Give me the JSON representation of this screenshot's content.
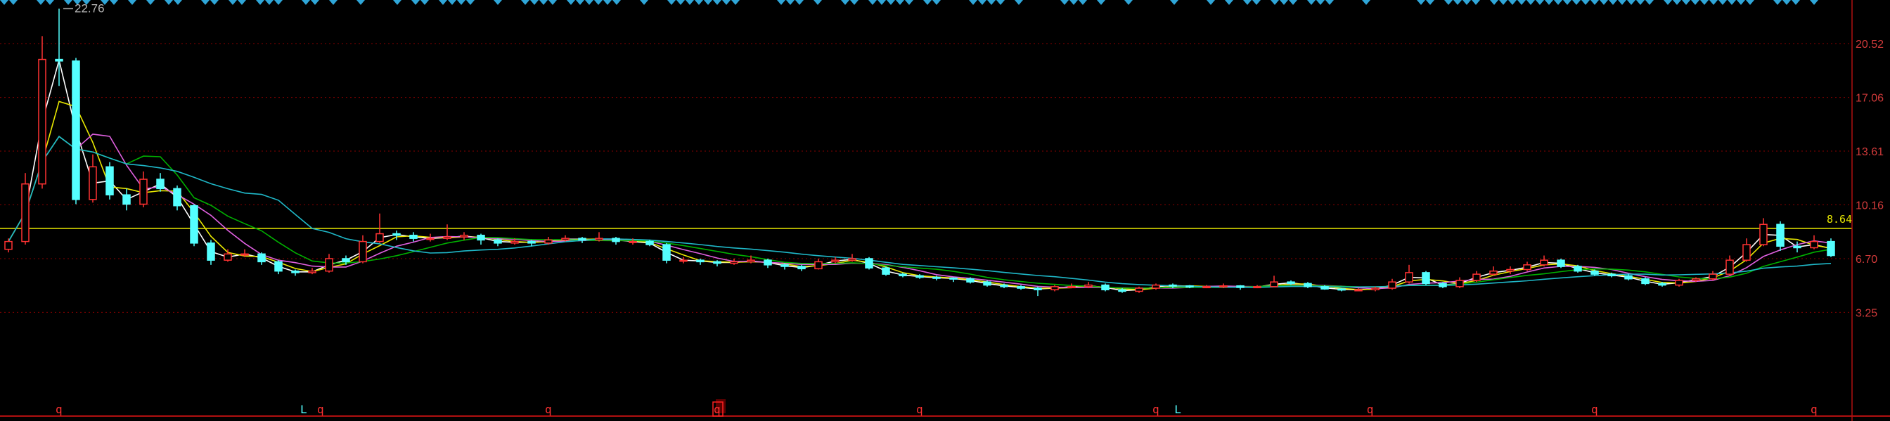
{
  "chart_data": {
    "type": "candlestick",
    "ylim": [
      1.2,
      23.3
    ],
    "y_ticks": [
      "20.52",
      "17.06",
      "13.61",
      "10.16",
      "6.70",
      "3.25"
    ],
    "grid": true,
    "reference_line": {
      "value": 8.64,
      "label": "8.64",
      "color": "#e8e800"
    },
    "max_annotation": {
      "value": 22.76,
      "label": "22.76",
      "index": 3
    },
    "colors": {
      "up": "#ff3232",
      "down": "#54ffff",
      "axis": "#b01010",
      "grid": "#8a0000",
      "signal": "#2fa6d8"
    },
    "moving_average_colors": [
      "#ffffff",
      "#e8e800",
      "#e060e0",
      "#00b000",
      "#1fb8c8"
    ],
    "candles": [
      [
        7.3,
        8.0,
        7.1,
        7.8
      ],
      [
        7.8,
        12.2,
        7.6,
        11.5
      ],
      [
        11.5,
        21.0,
        11.2,
        19.5
      ],
      [
        19.5,
        22.76,
        17.8,
        19.4
      ],
      [
        19.4,
        19.6,
        10.2,
        10.5
      ],
      [
        10.5,
        13.4,
        10.3,
        12.6
      ],
      [
        12.6,
        12.9,
        10.5,
        10.8
      ],
      [
        10.8,
        11.2,
        9.8,
        10.2
      ],
      [
        10.2,
        12.3,
        10.0,
        11.8
      ],
      [
        11.8,
        12.2,
        11.0,
        11.2
      ],
      [
        11.2,
        11.4,
        9.8,
        10.1
      ],
      [
        10.1,
        10.2,
        7.5,
        7.7
      ],
      [
        7.7,
        7.9,
        6.3,
        6.6
      ],
      [
        6.6,
        7.3,
        6.5,
        7.0
      ],
      [
        7.0,
        7.3,
        6.8,
        7.0
      ],
      [
        7.0,
        7.1,
        6.3,
        6.5
      ],
      [
        6.5,
        6.6,
        5.7,
        5.9
      ],
      [
        5.9,
        6.0,
        5.6,
        5.8
      ],
      [
        5.8,
        6.1,
        5.7,
        5.9
      ],
      [
        5.9,
        7.0,
        5.8,
        6.7
      ],
      [
        6.7,
        6.9,
        6.3,
        6.5
      ],
      [
        6.5,
        8.2,
        6.4,
        7.8
      ],
      [
        7.8,
        9.6,
        7.7,
        8.3
      ],
      [
        8.3,
        8.5,
        7.9,
        8.2
      ],
      [
        8.2,
        8.4,
        7.8,
        8.0
      ],
      [
        8.0,
        8.3,
        7.8,
        8.0
      ],
      [
        8.0,
        8.9,
        7.9,
        8.1
      ],
      [
        8.1,
        8.4,
        7.9,
        8.2
      ],
      [
        8.2,
        8.3,
        7.6,
        7.9
      ],
      [
        7.9,
        8.0,
        7.5,
        7.7
      ],
      [
        7.7,
        8.0,
        7.6,
        7.8
      ],
      [
        7.8,
        7.9,
        7.5,
        7.7
      ],
      [
        7.7,
        8.1,
        7.6,
        7.9
      ],
      [
        7.9,
        8.2,
        7.8,
        8.0
      ],
      [
        8.0,
        8.1,
        7.7,
        7.9
      ],
      [
        7.9,
        8.4,
        7.8,
        8.0
      ],
      [
        8.0,
        8.1,
        7.6,
        7.8
      ],
      [
        7.8,
        8.0,
        7.6,
        7.8
      ],
      [
        7.8,
        7.9,
        7.5,
        7.6
      ],
      [
        7.6,
        7.7,
        6.4,
        6.6
      ],
      [
        6.6,
        6.8,
        6.4,
        6.6
      ],
      [
        6.6,
        6.7,
        6.3,
        6.5
      ],
      [
        6.5,
        6.6,
        6.2,
        6.4
      ],
      [
        6.4,
        6.7,
        6.3,
        6.5
      ],
      [
        6.5,
        6.9,
        6.4,
        6.6
      ],
      [
        6.6,
        6.7,
        6.1,
        6.3
      ],
      [
        6.3,
        6.4,
        6.0,
        6.2
      ],
      [
        6.2,
        6.3,
        5.9,
        6.05
      ],
      [
        6.05,
        6.7,
        6.0,
        6.5
      ],
      [
        6.5,
        6.8,
        6.4,
        6.6
      ],
      [
        6.6,
        7.0,
        6.5,
        6.7
      ],
      [
        6.7,
        6.8,
        6.0,
        6.1
      ],
      [
        6.1,
        6.2,
        5.6,
        5.7
      ],
      [
        5.7,
        5.8,
        5.5,
        5.6
      ],
      [
        5.6,
        5.7,
        5.4,
        5.5
      ],
      [
        5.5,
        5.6,
        5.3,
        5.45
      ],
      [
        5.45,
        5.5,
        5.2,
        5.4
      ],
      [
        5.4,
        5.5,
        5.1,
        5.2
      ],
      [
        5.2,
        5.3,
        4.9,
        5.0
      ],
      [
        5.0,
        5.1,
        4.8,
        4.9
      ],
      [
        4.9,
        5.0,
        4.7,
        4.8
      ],
      [
        4.8,
        4.9,
        4.3,
        4.7
      ],
      [
        4.7,
        5.0,
        4.6,
        4.9
      ],
      [
        4.9,
        5.1,
        4.8,
        4.9
      ],
      [
        4.9,
        5.2,
        4.8,
        5.0
      ],
      [
        5.0,
        5.1,
        4.6,
        4.7
      ],
      [
        4.7,
        4.8,
        4.5,
        4.6
      ],
      [
        4.6,
        4.9,
        4.5,
        4.8
      ],
      [
        4.8,
        5.1,
        4.7,
        5.0
      ],
      [
        5.0,
        5.1,
        4.8,
        4.95
      ],
      [
        4.95,
        5.0,
        4.8,
        4.9
      ],
      [
        4.9,
        5.0,
        4.8,
        4.9
      ],
      [
        4.9,
        5.1,
        4.8,
        4.95
      ],
      [
        4.95,
        5.0,
        4.7,
        4.85
      ],
      [
        4.85,
        5.0,
        4.8,
        4.9
      ],
      [
        4.9,
        5.6,
        4.85,
        5.2
      ],
      [
        5.2,
        5.3,
        5.0,
        5.1
      ],
      [
        5.1,
        5.2,
        4.8,
        4.9
      ],
      [
        4.9,
        5.0,
        4.7,
        4.75
      ],
      [
        4.75,
        4.8,
        4.6,
        4.7
      ],
      [
        4.7,
        4.8,
        4.6,
        4.7
      ],
      [
        4.7,
        4.9,
        4.6,
        4.8
      ],
      [
        4.8,
        5.4,
        4.7,
        5.2
      ],
      [
        5.2,
        6.3,
        5.1,
        5.8
      ],
      [
        5.8,
        5.9,
        5.0,
        5.1
      ],
      [
        5.1,
        5.2,
        4.8,
        4.9
      ],
      [
        4.9,
        5.5,
        4.8,
        5.3
      ],
      [
        5.3,
        5.9,
        5.2,
        5.7
      ],
      [
        5.7,
        6.2,
        5.6,
        5.9
      ],
      [
        5.9,
        6.2,
        5.7,
        6.0
      ],
      [
        6.0,
        6.5,
        5.9,
        6.3
      ],
      [
        6.3,
        6.9,
        6.2,
        6.6
      ],
      [
        6.6,
        6.7,
        6.1,
        6.2
      ],
      [
        6.2,
        6.3,
        5.8,
        5.9
      ],
      [
        5.9,
        6.0,
        5.6,
        5.7
      ],
      [
        5.7,
        5.8,
        5.5,
        5.6
      ],
      [
        5.6,
        5.7,
        5.3,
        5.4
      ],
      [
        5.4,
        5.5,
        5.0,
        5.1
      ],
      [
        5.1,
        5.2,
        4.9,
        5.0
      ],
      [
        5.0,
        5.4,
        4.9,
        5.3
      ],
      [
        5.3,
        5.5,
        5.2,
        5.4
      ],
      [
        5.4,
        5.9,
        5.3,
        5.7
      ],
      [
        5.7,
        6.9,
        5.6,
        6.6
      ],
      [
        6.6,
        8.0,
        6.5,
        7.6
      ],
      [
        7.6,
        9.3,
        7.5,
        8.9
      ],
      [
        8.9,
        9.1,
        7.2,
        7.5
      ],
      [
        7.5,
        7.8,
        7.1,
        7.4
      ],
      [
        7.4,
        8.2,
        7.3,
        7.8
      ],
      [
        7.8,
        8.0,
        6.8,
        6.9
      ]
    ],
    "bottom_markers": [
      {
        "label": "q",
        "index": 3,
        "color": "#ff3232",
        "boxed": false
      },
      {
        "label": "L",
        "index": 17.5,
        "color": "#54ffff",
        "boxed": false
      },
      {
        "label": "q",
        "index": 18.5,
        "color": "#ff3232",
        "boxed": false
      },
      {
        "label": "q",
        "index": 32,
        "color": "#ff3232",
        "boxed": false
      },
      {
        "label": "q",
        "index": 42,
        "color": "#ff3232",
        "boxed": true
      },
      {
        "label": "q",
        "index": 54,
        "color": "#ff3232",
        "boxed": false
      },
      {
        "label": "q",
        "index": 68,
        "color": "#ff3232",
        "boxed": false
      },
      {
        "label": "L",
        "index": 69.3,
        "color": "#54ffff",
        "boxed": false
      },
      {
        "label": "q",
        "index": 80.7,
        "color": "#ff3232",
        "boxed": false
      },
      {
        "label": "q",
        "index": 94,
        "color": "#ff3232",
        "boxed": false
      },
      {
        "label": "q",
        "index": 107,
        "color": "#ff3232",
        "boxed": false
      }
    ],
    "signal_icon": "diamond-icon"
  }
}
